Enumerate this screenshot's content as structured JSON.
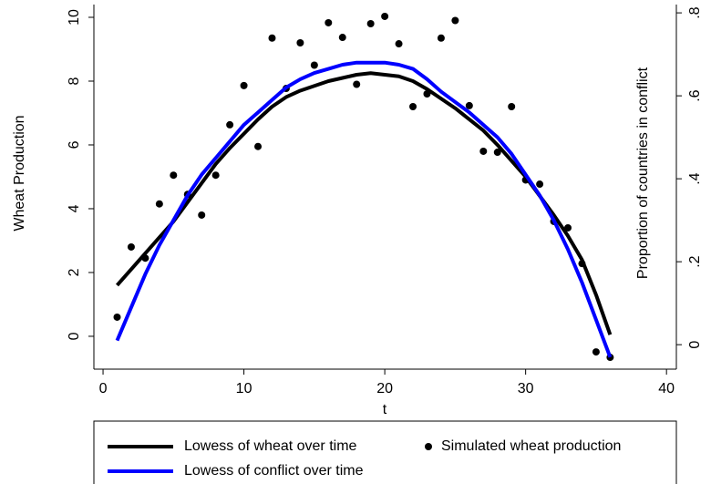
{
  "chart_data": {
    "type": "line",
    "x_label": "t",
    "y_label": "Wheat Production",
    "y2_label": "Proportion of countries in conflict",
    "x": [
      1,
      2,
      3,
      4,
      5,
      6,
      7,
      8,
      9,
      10,
      11,
      12,
      13,
      14,
      15,
      16,
      17,
      18,
      19,
      20,
      21,
      22,
      23,
      24,
      25,
      26,
      27,
      28,
      29,
      30,
      31,
      32,
      33,
      34,
      35,
      36
    ],
    "xlim": [
      -0.65,
      40.7
    ],
    "xticks": [
      0,
      10,
      20,
      30,
      40
    ],
    "ylim": [
      -1.03,
      10.4
    ],
    "yticks": [
      0,
      2,
      4,
      6,
      8,
      10
    ],
    "y2lim": [
      -0.059,
      0.82
    ],
    "y2ticks": [
      0,
      {
        "value": 0.2,
        "label": ".2"
      },
      {
        "value": 0.4,
        "label": ".4"
      },
      {
        "value": 0.6,
        "label": ".6"
      },
      {
        "value": 0.8,
        "label": ".8"
      }
    ],
    "series": [
      {
        "name": "Lowess of wheat over time",
        "color": "#000000",
        "style": "line",
        "values": [
          1.6,
          2.1,
          2.6,
          3.1,
          3.6,
          4.2,
          4.8,
          5.4,
          5.9,
          6.35,
          6.8,
          7.2,
          7.5,
          7.7,
          7.85,
          8.0,
          8.1,
          8.2,
          8.25,
          8.2,
          8.15,
          8.0,
          7.75,
          7.45,
          7.15,
          6.8,
          6.45,
          6.0,
          5.5,
          5.0,
          4.4,
          3.8,
          3.15,
          2.4,
          1.3,
          0.05
        ]
      },
      {
        "name": "Simulated wheat production",
        "color": "#000000",
        "style": "markers",
        "values": [
          0.6,
          2.8,
          2.45,
          4.15,
          5.05,
          4.45,
          3.8,
          5.05,
          6.63,
          7.86,
          5.95,
          9.35,
          7.77,
          9.2,
          8.5,
          9.83,
          9.37,
          7.9,
          9.8,
          10.03,
          9.17,
          7.2,
          7.6,
          9.35,
          9.9,
          7.23,
          5.8,
          5.77,
          7.2,
          4.9,
          4.77,
          3.6,
          3.4,
          2.28,
          -0.49,
          -0.66
        ]
      },
      {
        "name": "Lowess of conflict over time",
        "color": "#0000ff",
        "style": "line",
        "axis": "y2",
        "values": [
          0.01,
          0.09,
          0.17,
          0.24,
          0.3,
          0.36,
          0.41,
          0.45,
          0.49,
          0.53,
          0.56,
          0.59,
          0.62,
          0.64,
          0.655,
          0.665,
          0.675,
          0.68,
          0.68,
          0.68,
          0.675,
          0.665,
          0.64,
          0.61,
          0.585,
          0.56,
          0.53,
          0.5,
          0.46,
          0.41,
          0.36,
          0.3,
          0.23,
          0.15,
          0.06,
          -0.03
        ]
      }
    ]
  }
}
